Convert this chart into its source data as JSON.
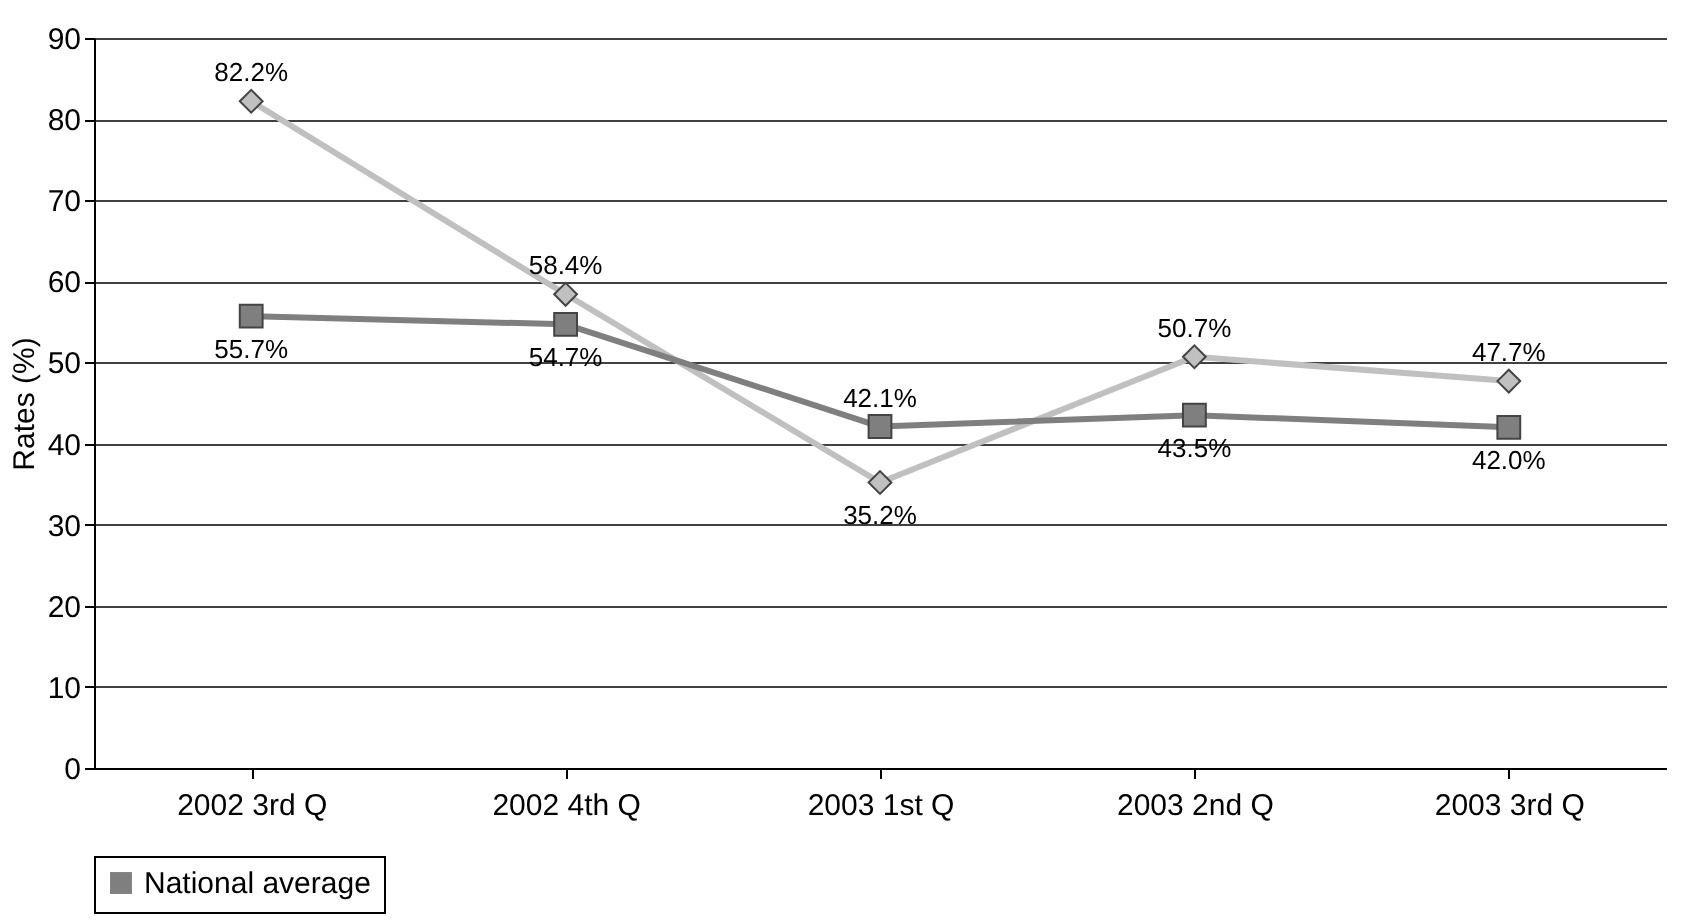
{
  "chart_data": {
    "type": "line",
    "ylabel": "Rates (%)",
    "categories": [
      "2002 3rd Q",
      "2002 4th Q",
      "2003 1st Q",
      "2003 2nd Q",
      "2003 3rd Q"
    ],
    "series": [
      {
        "color": "#c0c0c0",
        "marker": "diamond",
        "values": [
          82.2,
          58.4,
          35.2,
          50.7,
          47.7
        ],
        "value_labels": [
          "82.2%",
          "58.4%",
          "35.2%",
          "50.7%",
          "47.7%"
        ]
      },
      {
        "name": "National average",
        "color": "#7f7f7f",
        "marker": "square",
        "values": [
          55.7,
          54.7,
          42.1,
          43.5,
          42.0
        ],
        "value_labels": [
          "55.7%",
          "54.7%",
          "42.1%",
          "43.5%",
          "42.0%"
        ]
      }
    ],
    "ylim": [
      0,
      90
    ],
    "yticks": [
      0,
      10,
      20,
      30,
      40,
      50,
      60,
      70,
      80,
      90
    ],
    "grid": "y",
    "legend": "bottom"
  }
}
